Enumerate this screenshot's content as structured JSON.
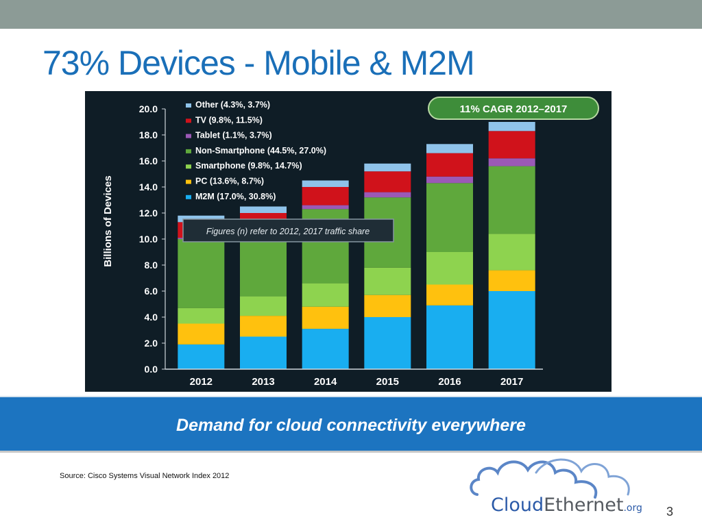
{
  "slide": {
    "title": "73% Devices - Mobile & M2M",
    "banner": "Demand for cloud connectivity everywhere",
    "source": "Source: Cisco Systems Visual Network Index 2012",
    "page_number": "3",
    "logo": {
      "text_cloud": "Cloud",
      "text_ethernet": "Ethernet",
      "text_org": ".org"
    },
    "colors": {
      "title": "#1a6fb8",
      "banner": "#1c74c0",
      "top_bar": "#8c9b96",
      "chart_bg": "#0f1d26"
    }
  },
  "chart_data": {
    "type": "bar",
    "stacked": true,
    "title": "",
    "badge": "11% CAGR 2012–2017",
    "annotation": "Figures (n) refer to 2012, 2017 traffic share",
    "ylabel": "Billions of Devices",
    "xlabel": "",
    "ylim": [
      0,
      20
    ],
    "yticks": [
      "0.0",
      "2.0",
      "4.0",
      "6.0",
      "8.0",
      "10.0",
      "12.0",
      "14.0",
      "16.0",
      "18.0",
      "20.0"
    ],
    "categories": [
      "2012",
      "2013",
      "2014",
      "2015",
      "2016",
      "2017"
    ],
    "legend_position": "top-left",
    "series": [
      {
        "name": "M2M (17.0%, 30.8%)",
        "color": "#19aef0",
        "values": [
          1.9,
          2.5,
          3.1,
          4.0,
          4.9,
          6.0
        ]
      },
      {
        "name": "PC (13.6%, 8.7%)",
        "color": "#ffc10e",
        "values": [
          1.6,
          1.6,
          1.7,
          1.7,
          1.6,
          1.6
        ]
      },
      {
        "name": "Smartphone (9.8%, 14.7%)",
        "color": "#8ed34f",
        "values": [
          1.2,
          1.5,
          1.8,
          2.1,
          2.5,
          2.8
        ]
      },
      {
        "name": "Non-Smartphone (44.5%, 27.0%)",
        "color": "#5fa83c",
        "values": [
          5.3,
          4.9,
          5.7,
          5.4,
          5.3,
          5.2
        ]
      },
      {
        "name": "Tablet (1.1%, 3.7%)",
        "color": "#9b59b6",
        "values": [
          0.1,
          0.2,
          0.3,
          0.4,
          0.5,
          0.6
        ]
      },
      {
        "name": "TV (9.8%, 11.5%)",
        "color": "#d0121b",
        "values": [
          1.2,
          1.3,
          1.4,
          1.6,
          1.8,
          2.1
        ]
      },
      {
        "name": "Other (4.3%, 3.7%)",
        "color": "#8fc3ea",
        "values": [
          0.5,
          0.5,
          0.5,
          0.6,
          0.7,
          0.7
        ]
      }
    ]
  }
}
